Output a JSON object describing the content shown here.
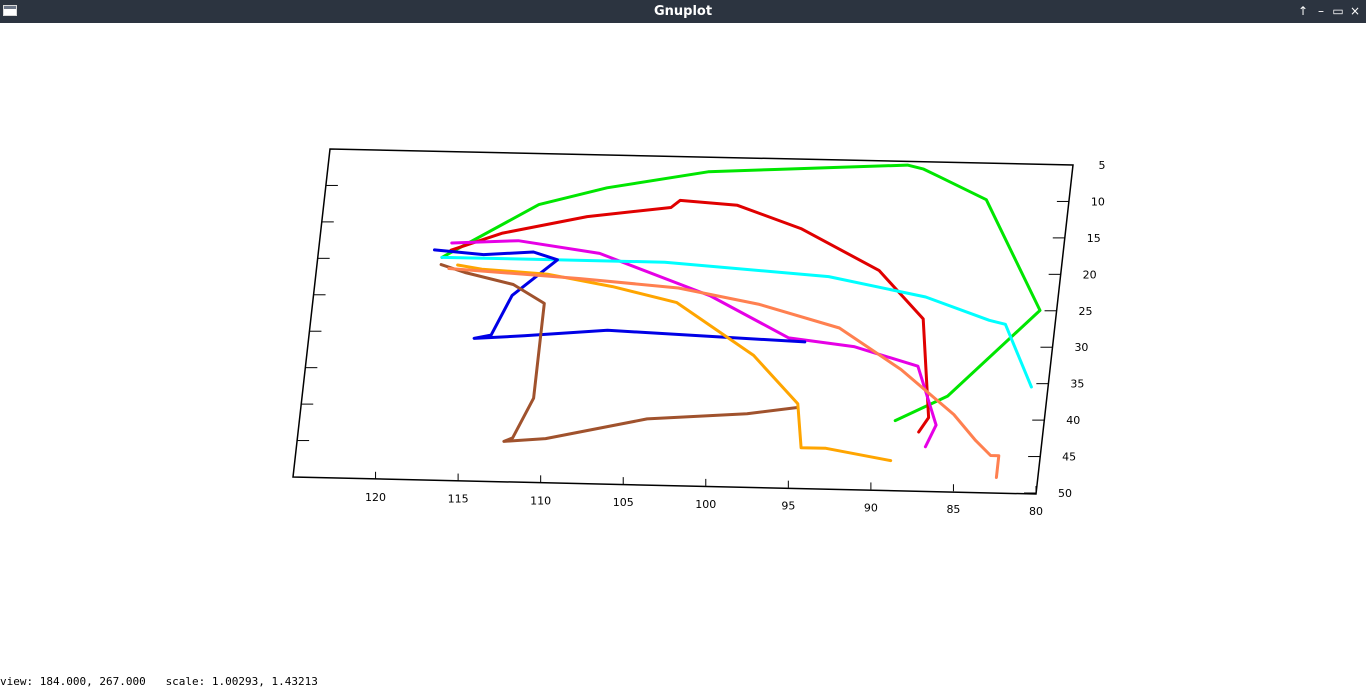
{
  "window": {
    "title": "Gnuplot",
    "buttons": {
      "up": "↑",
      "minimize": "–",
      "maximize": "▭",
      "close": "×"
    }
  },
  "status": {
    "text": "view: 184.000, 267.000   scale: 1.00293, 1.43213"
  },
  "chart_data": {
    "type": "line",
    "title": "",
    "xlabel": "",
    "ylabel": "",
    "x_ticks": [
      120,
      115,
      110,
      105,
      100,
      95,
      90,
      85,
      80
    ],
    "y_ticks": [
      5,
      10,
      15,
      20,
      25,
      30,
      35,
      40,
      45,
      50
    ],
    "xlim": [
      125,
      80
    ],
    "ylim": [
      5,
      50
    ],
    "grid": false,
    "series": [
      {
        "color": "#00e600",
        "x": [
          117.5,
          112,
          108,
          102,
          98,
          94,
          90,
          89,
          88,
          85,
          81,
          86,
          89
        ],
        "y": [
          19.5,
          12,
          9.5,
          7,
          6.5,
          6,
          5.5,
          6,
          7,
          10,
          25,
          37,
          40.5
        ]
      },
      {
        "color": "#e00000",
        "x": [
          117,
          114,
          109,
          104,
          103.5,
          100,
          96,
          91,
          88,
          87,
          87.5
        ],
        "y": [
          18.5,
          16,
          13.5,
          12,
          11,
          11.5,
          14.5,
          20,
          26.5,
          40,
          42
        ]
      },
      {
        "color": "#e600e6",
        "x": [
          117,
          113,
          108,
          101,
          96,
          92,
          88,
          86.5,
          87
        ],
        "y": [
          17.5,
          17,
          18.5,
          24,
          29.5,
          30.5,
          33,
          41,
          44
        ]
      },
      {
        "color": "#00ffff",
        "x": [
          117.5,
          112,
          104,
          94,
          88,
          84,
          83,
          81
        ],
        "y": [
          19.5,
          19.5,
          19.5,
          21,
          23.5,
          26.5,
          27,
          35.5
        ]
      },
      {
        "color": "#0000e6",
        "x": [
          118,
          115,
          112,
          110.5,
          113,
          114,
          115,
          112,
          107,
          101,
          95
        ],
        "y": [
          18.5,
          19,
          18.5,
          19.5,
          24.5,
          30,
          30.5,
          30,
          29,
          29.5,
          30
        ]
      },
      {
        "color": "#a0522d",
        "x": [
          117.5,
          116,
          113,
          111,
          111,
          112,
          112.5,
          110,
          104,
          98,
          95
        ],
        "y": [
          20.5,
          21.5,
          23,
          25.5,
          38.5,
          44,
          44.5,
          44,
          41,
          40,
          39
        ]
      },
      {
        "color": "#ffa500",
        "x": [
          116.5,
          115,
          111,
          107,
          103,
          98,
          95,
          94.5,
          93,
          89
        ],
        "y": [
          20.5,
          21,
          21.5,
          23,
          25,
          32,
          38.5,
          44.5,
          44.5,
          46
        ]
      },
      {
        "color": "#ff8050",
        "x": [
          117,
          113,
          109,
          103,
          98,
          93,
          89,
          85.5,
          84,
          83,
          82.5,
          82.5
        ],
        "y": [
          21,
          21.5,
          22,
          23,
          25,
          28,
          33.5,
          39.5,
          43,
          45,
          45,
          48
        ]
      }
    ]
  }
}
